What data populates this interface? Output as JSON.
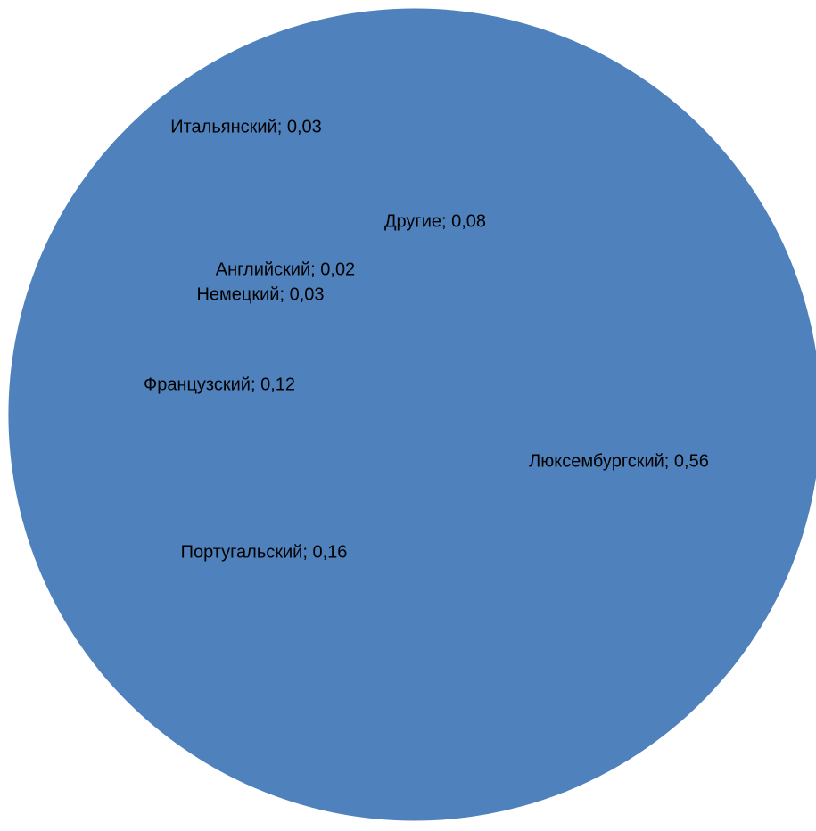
{
  "chart_data": {
    "type": "pie",
    "title": "",
    "label_separator": "; ",
    "slice_color": "#4f81bd",
    "slices": [
      {
        "label": "Люксембургский",
        "value": 0.56,
        "value_text": "0,56"
      },
      {
        "label": "Португальский",
        "value": 0.16,
        "value_text": "0,16"
      },
      {
        "label": "Французский",
        "value": 0.12,
        "value_text": "0,12"
      },
      {
        "label": "Немецкий",
        "value": 0.03,
        "value_text": "0,03"
      },
      {
        "label": "Английский",
        "value": 0.02,
        "value_text": "0,02"
      },
      {
        "label": "Итальянский",
        "value": 0.03,
        "value_text": "0,03"
      },
      {
        "label": "Другие",
        "value": 0.08,
        "value_text": "0,08"
      }
    ]
  }
}
